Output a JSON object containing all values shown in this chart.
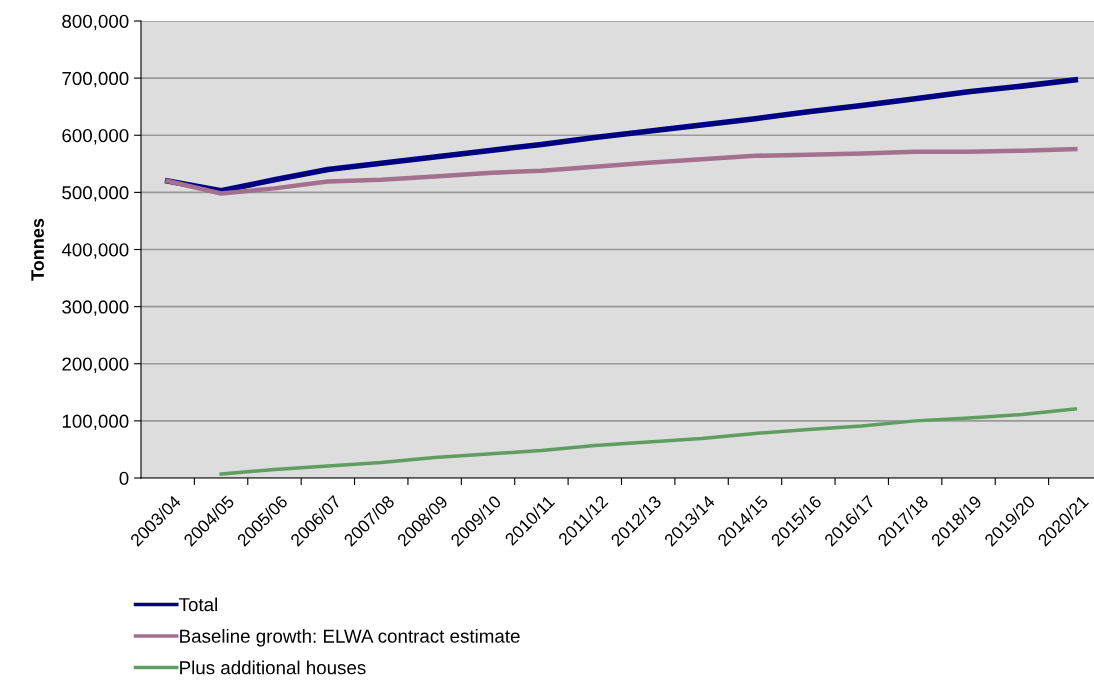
{
  "chart_data": {
    "type": "line",
    "ylabel": "Tonnes",
    "categories": [
      "2003/04",
      "2004/05",
      "2005/06",
      "2006/07",
      "2007/08",
      "2008/09",
      "2009/10",
      "2010/11",
      "2011/12",
      "2012/13",
      "2013/14",
      "2014/15",
      "2015/16",
      "2016/17",
      "2017/18",
      "2018/19",
      "2019/20",
      "2020/21"
    ],
    "series": [
      {
        "name": "Total",
        "color": "#000080",
        "values": [
          520000,
          503000,
          522000,
          540000,
          551000,
          562000,
          573000,
          584000,
          596000,
          607000,
          618000,
          629000,
          641000,
          652000,
          664000,
          676000,
          686000,
          697000
        ]
      },
      {
        "name": "Baseline growth: ELWA contract estimate",
        "color": "#a3708f",
        "values": [
          520000,
          498000,
          507000,
          519000,
          522000,
          528000,
          534000,
          538000,
          545000,
          552000,
          558000,
          564000,
          566000,
          568000,
          571000,
          571000,
          573000,
          576000
        ]
      },
      {
        "name": "Plus additional houses",
        "color": "#5f9e61",
        "values": [
          null,
          7000,
          15000,
          21000,
          27000,
          36000,
          42000,
          48000,
          57000,
          63000,
          69000,
          78000,
          85000,
          91000,
          100000,
          105000,
          111000,
          121000
        ]
      }
    ],
    "ylim": [
      0,
      800000
    ],
    "yticks": [
      {
        "value": 0,
        "label": "0"
      },
      {
        "value": 100000,
        "label": "100,000"
      },
      {
        "value": 200000,
        "label": "200,000"
      },
      {
        "value": 300000,
        "label": "300,000"
      },
      {
        "value": 400000,
        "label": "400,000"
      },
      {
        "value": 500000,
        "label": "500,000"
      },
      {
        "value": 600000,
        "label": "600,000"
      },
      {
        "value": 700000,
        "label": "700,000"
      },
      {
        "value": 800000,
        "label": "800,000"
      }
    ],
    "grid": "y",
    "legend": "bottom",
    "marker": "none",
    "line_style": "solid"
  }
}
